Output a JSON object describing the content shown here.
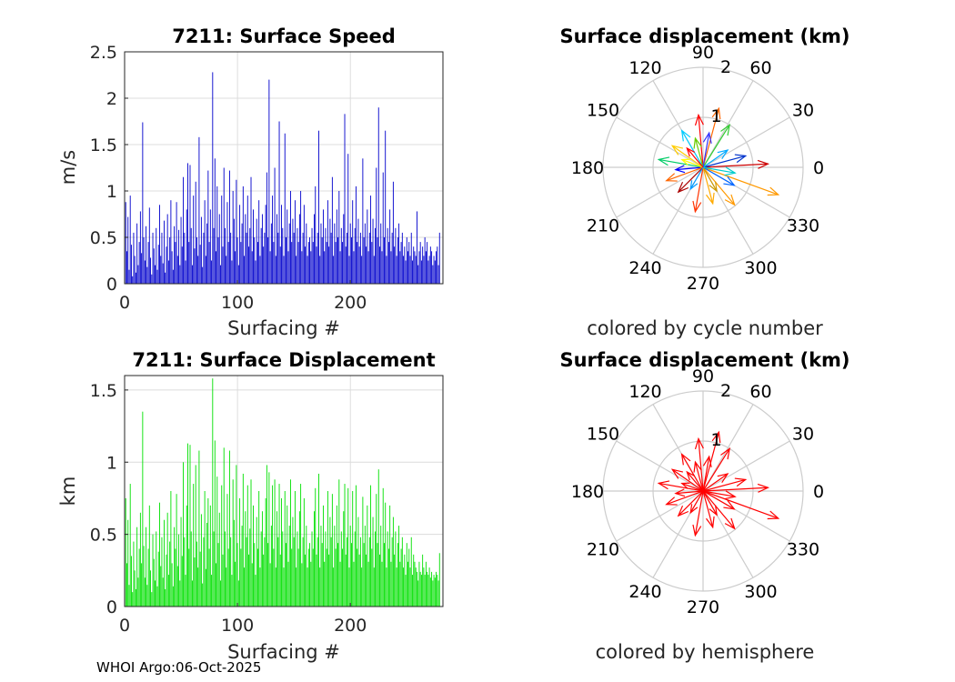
{
  "footer": "WHOI Argo:06-Oct-2025",
  "colors": {
    "speed_bars": "#0000cc",
    "displacement_bars": "#00e000",
    "hemisphere_arrows": "#ff0000",
    "grid": "#dcdcdc",
    "polar_grid": "#cccccc"
  },
  "chart_data": [
    {
      "type": "bar",
      "title": "7211: Surface Speed",
      "xlabel": "Surfacing #",
      "ylabel": "m/s",
      "xlim": [
        0,
        282
      ],
      "ylim": [
        0,
        2.5
      ],
      "xticks": [
        "0",
        "100",
        "200"
      ],
      "yticks": [
        "0",
        "0.5",
        "1",
        "1.5",
        "2",
        "2.5"
      ],
      "grid": true,
      "x_start": 1,
      "values": [
        0.88,
        0.35,
        0.72,
        0.15,
        0.95,
        0.42,
        0.08,
        0.55,
        0.3,
        0.12,
        0.65,
        0.2,
        0.45,
        0.78,
        0.33,
        1.74,
        0.5,
        0.25,
        0.62,
        0.18,
        0.45,
        0.82,
        0.28,
        0.1,
        0.55,
        0.38,
        0.2,
        0.6,
        0.15,
        0.42,
        0.85,
        0.3,
        0.55,
        0.22,
        0.68,
        0.12,
        0.4,
        0.75,
        0.25,
        0.5,
        0.9,
        0.35,
        0.15,
        0.62,
        0.45,
        0.88,
        0.3,
        0.58,
        0.2,
        0.72,
        0.4,
        1.15,
        0.55,
        0.25,
        0.8,
        1.3,
        0.45,
        1.28,
        0.6,
        0.2,
        0.95,
        0.38,
        1.1,
        0.5,
        0.3,
        1.58,
        0.42,
        0.72,
        0.18,
        0.55,
        0.9,
        0.3,
        0.65,
        1.22,
        0.45,
        0.8,
        0.25,
        2.28,
        0.6,
        1.35,
        0.35,
        1.05,
        0.5,
        0.75,
        0.2,
        0.95,
        0.4,
        1.25,
        0.6,
        0.3,
        0.88,
        0.45,
        1.22,
        0.55,
        0.25,
        1.0,
        0.7,
        0.35,
        1.12,
        0.5,
        0.2,
        0.85,
        0.45,
        0.65,
        1.05,
        0.3,
        0.75,
        0.55,
        0.95,
        0.4,
        0.6,
        1.15,
        0.35,
        0.8,
        0.5,
        0.25,
        0.7,
        0.45,
        0.9,
        0.3,
        0.6,
        0.75,
        0.4,
        0.55,
        0.85,
        1.2,
        0.5,
        2.2,
        0.35,
        0.65,
        0.95,
        0.45,
        1.25,
        0.3,
        0.75,
        0.55,
        1.75,
        0.4,
        0.85,
        0.6,
        0.3,
        1.62,
        0.5,
        0.8,
        0.35,
        0.65,
        1.0,
        0.45,
        0.7,
        0.55,
        0.9,
        0.3,
        0.6,
        0.45,
        0.75,
        1.0,
        0.35,
        0.55,
        0.85,
        0.4,
        0.65,
        0.3,
        0.45,
        0.5,
        0.35,
        0.6,
        0.45,
        0.75,
        1.05,
        0.4,
        0.55,
        1.65,
        0.3,
        0.65,
        0.5,
        0.8,
        0.35,
        0.6,
        0.45,
        0.9,
        0.4,
        0.7,
        0.55,
        1.15,
        0.3,
        0.65,
        0.45,
        0.8,
        0.5,
        1.0,
        0.35,
        0.6,
        0.45,
        0.75,
        1.83,
        0.4,
        0.55,
        1.4,
        0.3,
        0.65,
        0.5,
        0.9,
        0.35,
        0.6,
        1.05,
        0.45,
        0.7,
        0.4,
        0.55,
        0.3,
        1.35,
        0.5,
        0.65,
        0.4,
        0.8,
        0.35,
        0.55,
        0.95,
        0.45,
        0.7,
        0.3,
        0.6,
        1.25,
        0.5,
        1.9,
        0.4,
        0.65,
        0.35,
        1.2,
        0.5,
        1.65,
        0.3,
        0.6,
        0.45,
        0.8,
        0.35,
        0.55,
        1.1,
        0.4,
        0.6,
        0.3,
        0.5,
        0.65,
        0.35,
        0.45,
        0.55,
        0.3,
        0.4,
        0.25,
        0.5,
        0.35,
        0.45,
        0.3,
        0.55,
        0.25,
        0.4,
        0.35,
        0.3,
        0.78,
        0.2,
        0.35,
        0.45,
        0.25,
        0.4,
        0.3,
        0.5,
        0.35,
        0.45,
        0.25,
        0.3,
        0.4,
        0.35,
        0.2,
        0.3,
        0.25,
        0.35,
        0.4,
        0.2,
        0.55
      ]
    },
    {
      "type": "bar",
      "title": "7211: Surface Displacement",
      "xlabel": "Surfacing #",
      "ylabel": "km",
      "xlim": [
        0,
        282
      ],
      "ylim": [
        0,
        1.6
      ],
      "xticks": [
        "0",
        "100",
        "200"
      ],
      "yticks": [
        "0",
        "0.5",
        "1",
        "1.5"
      ],
      "grid": true,
      "x_start": 1,
      "values": [
        0.75,
        0.3,
        0.6,
        0.15,
        0.85,
        0.35,
        0.1,
        0.45,
        0.25,
        0.12,
        0.55,
        0.2,
        0.4,
        0.65,
        0.3,
        1.35,
        0.42,
        0.2,
        0.55,
        0.15,
        0.4,
        0.7,
        0.25,
        0.1,
        0.5,
        0.33,
        0.18,
        0.52,
        0.14,
        0.38,
        0.72,
        0.28,
        0.48,
        0.2,
        0.6,
        0.12,
        0.36,
        0.65,
        0.22,
        0.45,
        0.8,
        0.3,
        0.14,
        0.55,
        0.4,
        0.78,
        0.28,
        0.5,
        0.18,
        0.62,
        0.35,
        1.0,
        0.48,
        0.22,
        0.7,
        1.13,
        0.4,
        1.12,
        0.52,
        0.18,
        0.85,
        0.34,
        0.98,
        0.45,
        0.27,
        1.08,
        0.38,
        0.64,
        0.16,
        0.48,
        0.8,
        0.26,
        0.58,
        0.75,
        0.4,
        0.7,
        0.22,
        1.58,
        0.52,
        1.15,
        0.3,
        0.9,
        0.44,
        0.65,
        0.18,
        0.84,
        0.36,
        1.1,
        0.52,
        0.27,
        0.78,
        0.4,
        1.08,
        0.48,
        0.22,
        0.88,
        0.6,
        0.31,
        0.98,
        0.44,
        0.18,
        0.75,
        0.4,
        0.56,
        0.92,
        0.27,
        0.66,
        0.48,
        0.84,
        0.36,
        0.54,
        0.88,
        0.3,
        0.7,
        0.44,
        0.22,
        0.62,
        0.4,
        0.8,
        0.27,
        0.52,
        0.66,
        0.36,
        0.48,
        0.75,
        0.98,
        0.44,
        0.93,
        0.3,
        0.56,
        0.84,
        0.4,
        0.88,
        0.27,
        0.66,
        0.48,
        0.85,
        0.36,
        0.75,
        0.52,
        0.27,
        0.8,
        0.44,
        0.7,
        0.31,
        0.56,
        0.88,
        0.4,
        0.62,
        0.48,
        0.8,
        0.27,
        0.52,
        0.4,
        0.66,
        0.85,
        0.3,
        0.48,
        0.75,
        0.36,
        0.56,
        0.27,
        0.4,
        0.44,
        0.31,
        0.52,
        0.4,
        0.66,
        0.82,
        0.36,
        0.48,
        0.92,
        0.27,
        0.56,
        0.44,
        0.7,
        0.31,
        0.52,
        0.4,
        0.8,
        0.36,
        0.62,
        0.48,
        0.78,
        0.27,
        0.56,
        0.4,
        0.7,
        0.44,
        0.88,
        0.31,
        0.52,
        0.4,
        0.66,
        0.85,
        0.36,
        0.48,
        0.82,
        0.27,
        0.56,
        0.44,
        0.8,
        0.31,
        0.52,
        0.84,
        0.4,
        0.62,
        0.36,
        0.48,
        0.27,
        0.76,
        0.44,
        0.56,
        0.36,
        0.7,
        0.31,
        0.48,
        0.84,
        0.4,
        0.62,
        0.27,
        0.52,
        0.78,
        0.44,
        0.95,
        0.36,
        0.56,
        0.31,
        0.82,
        0.44,
        0.72,
        0.27,
        0.52,
        0.4,
        0.7,
        0.31,
        0.48,
        0.62,
        0.36,
        0.52,
        0.27,
        0.44,
        0.56,
        0.31,
        0.4,
        0.48,
        0.27,
        0.36,
        0.22,
        0.44,
        0.31,
        0.4,
        0.27,
        0.48,
        0.22,
        0.36,
        0.31,
        0.27,
        0.24,
        0.18,
        0.31,
        0.24,
        0.22,
        0.36,
        0.27,
        0.22,
        0.31,
        0.24,
        0.22,
        0.27,
        0.2,
        0.24,
        0.18,
        0.22,
        0.2,
        0.24,
        0.22,
        0.18,
        0.37
      ]
    },
    {
      "type": "polar-arrows",
      "title": "Surface displacement (km)",
      "caption": "colored by cycle number",
      "rlim": [
        0,
        2
      ],
      "rticks": [
        "1",
        "2"
      ],
      "angle_labels": [
        "0",
        "30",
        "60",
        "90",
        "120",
        "150",
        "180",
        "210",
        "240",
        "270",
        "300",
        "330"
      ],
      "color_scale": "cycle number (blue to red)",
      "arrows": [
        {
          "theta": -20,
          "r": 1.6,
          "color": "#ff9900"
        },
        {
          "theta": 3,
          "r": 1.3,
          "color": "#cc0000"
        },
        {
          "theta": 75,
          "r": 1.22,
          "color": "#ff6600"
        },
        {
          "theta": 58,
          "r": 1.0,
          "color": "#33cc33"
        },
        {
          "theta": 95,
          "r": 1.05,
          "color": "#ff0000"
        },
        {
          "theta": 120,
          "r": 0.85,
          "color": "#00ccff"
        },
        {
          "theta": 145,
          "r": 0.75,
          "color": "#ffcc00"
        },
        {
          "theta": 170,
          "r": 0.9,
          "color": "#00cc66"
        },
        {
          "theta": 185,
          "r": 0.55,
          "color": "#0000ff"
        },
        {
          "theta": 200,
          "r": 0.78,
          "color": "#ff6600"
        },
        {
          "theta": 225,
          "r": 0.7,
          "color": "#aa0000"
        },
        {
          "theta": 260,
          "r": 0.9,
          "color": "#ff3300"
        },
        {
          "theta": 285,
          "r": 0.75,
          "color": "#ffaa00"
        },
        {
          "theta": 310,
          "r": 0.98,
          "color": "#ff9900"
        },
        {
          "theta": 330,
          "r": 0.72,
          "color": "#0066ff"
        },
        {
          "theta": 15,
          "r": 0.88,
          "color": "#0033cc"
        },
        {
          "theta": 35,
          "r": 0.6,
          "color": "#00aaff"
        },
        {
          "theta": 105,
          "r": 0.6,
          "color": "#66cc00"
        },
        {
          "theta": 160,
          "r": 0.45,
          "color": "#ffff00"
        },
        {
          "theta": 240,
          "r": 0.5,
          "color": "#0099ff"
        },
        {
          "theta": 300,
          "r": 0.55,
          "color": "#cc9900"
        },
        {
          "theta": 350,
          "r": 0.65,
          "color": "#00cccc"
        },
        {
          "theta": 80,
          "r": 0.7,
          "color": "#3333ff"
        },
        {
          "theta": 130,
          "r": 0.5,
          "color": "#ff0000"
        }
      ]
    },
    {
      "type": "polar-arrows",
      "title": "Surface displacement (km)",
      "caption": "colored by hemisphere",
      "rlim": [
        0,
        2
      ],
      "rticks": [
        "1",
        "2"
      ],
      "angle_labels": [
        "0",
        "30",
        "60",
        "90",
        "120",
        "150",
        "180",
        "210",
        "240",
        "270",
        "300",
        "330"
      ],
      "color": "#ff0000",
      "arrows": [
        {
          "theta": -20,
          "r": 1.6
        },
        {
          "theta": 3,
          "r": 1.3
        },
        {
          "theta": 75,
          "r": 1.22
        },
        {
          "theta": 58,
          "r": 1.0
        },
        {
          "theta": 95,
          "r": 1.05
        },
        {
          "theta": 120,
          "r": 0.85
        },
        {
          "theta": 145,
          "r": 0.75
        },
        {
          "theta": 170,
          "r": 0.9
        },
        {
          "theta": 185,
          "r": 0.55
        },
        {
          "theta": 200,
          "r": 0.78
        },
        {
          "theta": 225,
          "r": 0.7
        },
        {
          "theta": 260,
          "r": 0.9
        },
        {
          "theta": 285,
          "r": 0.75
        },
        {
          "theta": 310,
          "r": 0.98
        },
        {
          "theta": 330,
          "r": 0.72
        },
        {
          "theta": 15,
          "r": 0.88
        },
        {
          "theta": 35,
          "r": 0.6
        },
        {
          "theta": 105,
          "r": 0.6
        },
        {
          "theta": 160,
          "r": 0.45
        },
        {
          "theta": 240,
          "r": 0.5
        },
        {
          "theta": 300,
          "r": 0.55
        },
        {
          "theta": 350,
          "r": 0.65
        },
        {
          "theta": 80,
          "r": 0.7
        },
        {
          "theta": 130,
          "r": 0.5
        }
      ]
    }
  ]
}
